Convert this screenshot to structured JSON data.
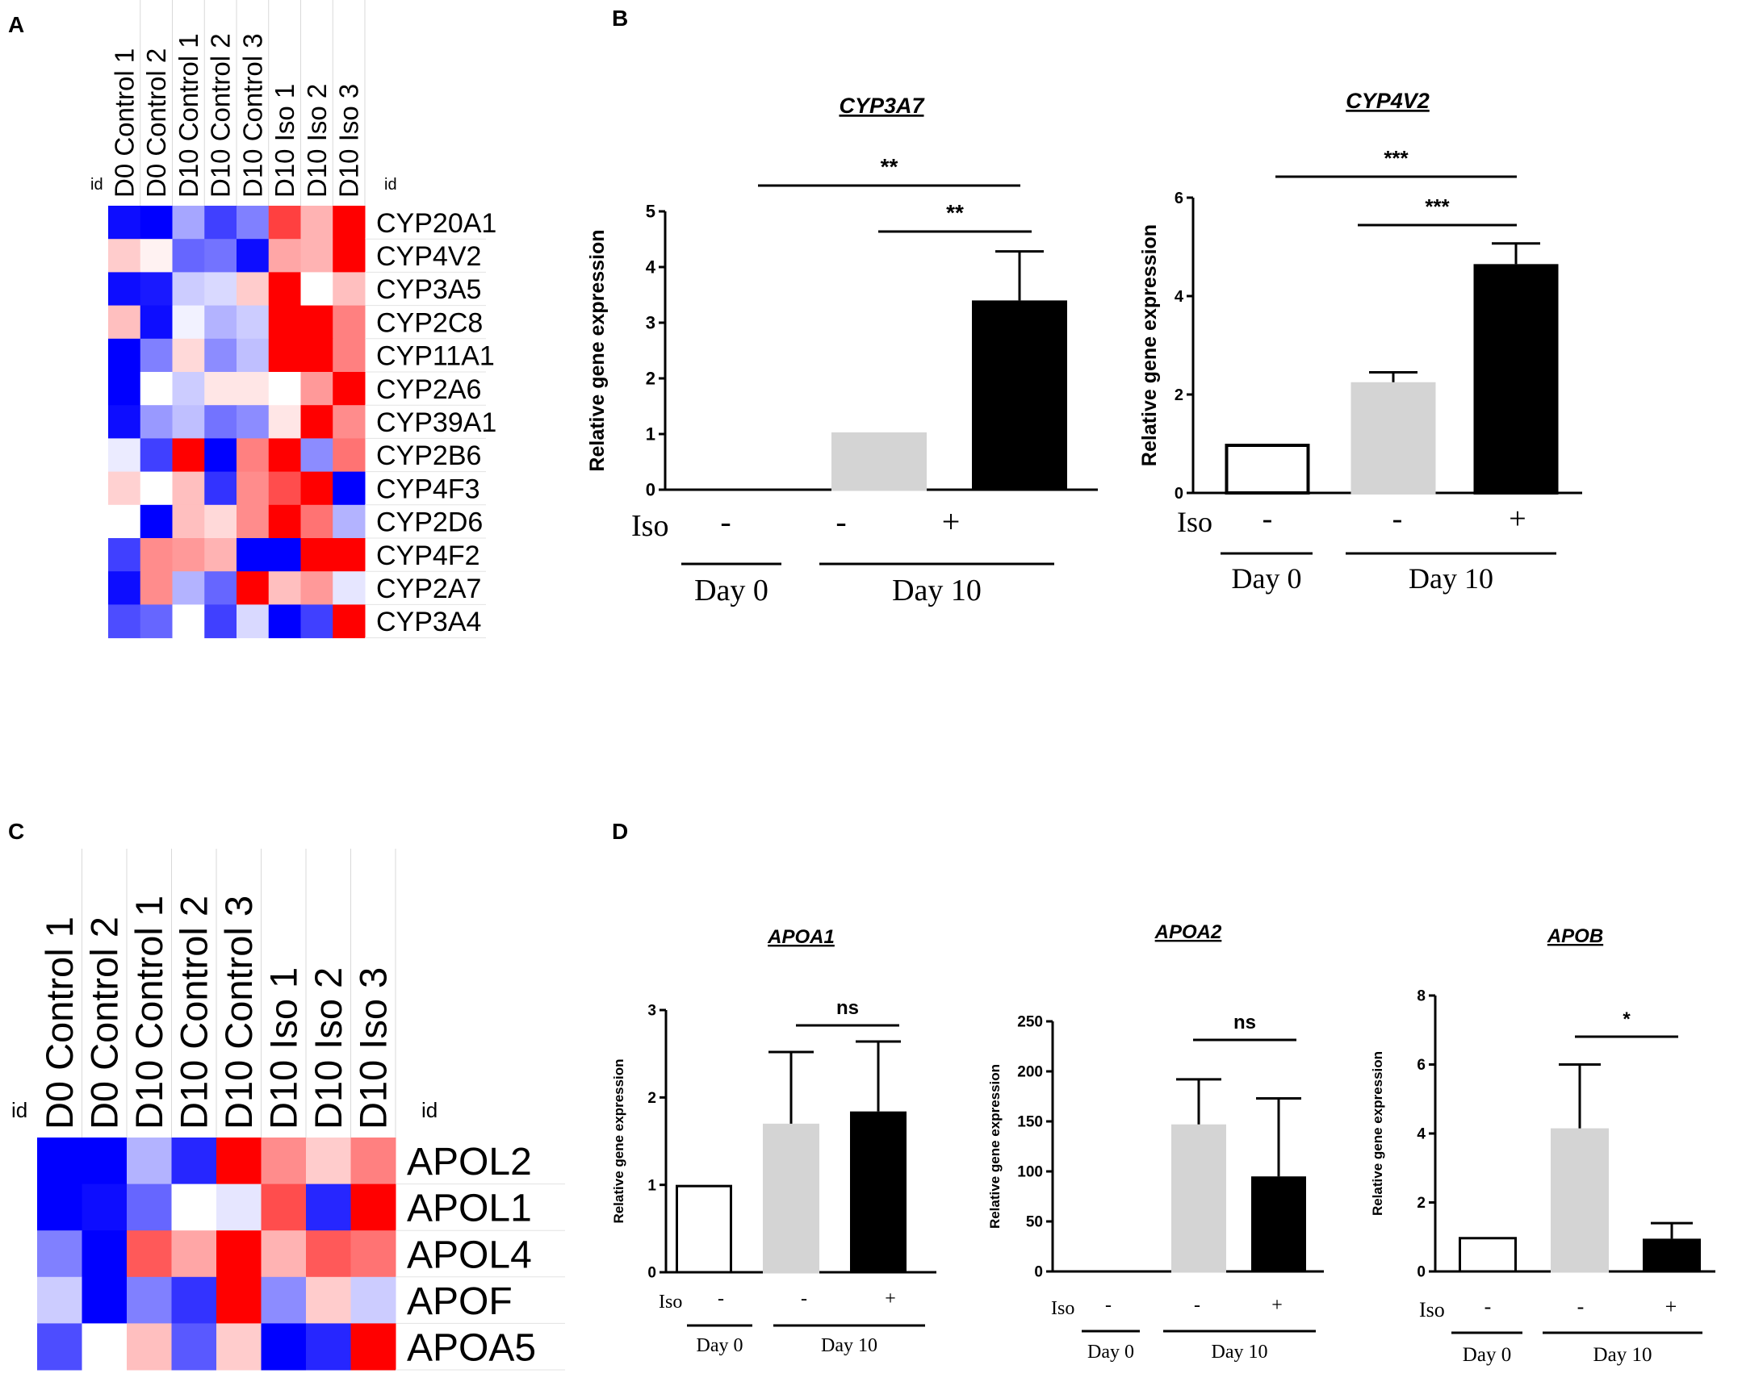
{
  "panels": {
    "a": "A",
    "b": "B",
    "c": "C",
    "d": "D"
  },
  "heatmap_a": {
    "id_label": "id",
    "columns": [
      "D0 Control 1",
      "D0 Control 2",
      "D10 Control 1",
      "D10 Control 2",
      "D10 Control 3",
      "D10 Iso 1",
      "D10 Iso 2",
      "D10 Iso 3"
    ],
    "rows": [
      "CYP20A1",
      "CYP4V2",
      "CYP3A5",
      "CYP2C8",
      "CYP11A1",
      "CYP2A6",
      "CYP39A1",
      "CYP2B6",
      "CYP4F3",
      "CYP2D6",
      "CYP4F2",
      "CYP2A7",
      "CYP3A4"
    ]
  },
  "heatmap_c": {
    "id_label": "id",
    "columns": [
      "D0 Control 1",
      "D0 Control 2",
      "D10 Control 1",
      "D10 Control 2",
      "D10 Control 3",
      "D10 Iso 1",
      "D10 Iso 2",
      "D10 Iso 3"
    ],
    "rows": [
      "APOL2",
      "APOL1",
      "APOL4",
      "APOF",
      "APOA5"
    ]
  },
  "chart_data": [
    {
      "panel": "A",
      "type": "heatmap",
      "title": "",
      "columns": [
        "D0 Control 1",
        "D0 Control 2",
        "D10 Control 1",
        "D10 Control 2",
        "D10 Control 3",
        "D10 Iso 1",
        "D10 Iso 2",
        "D10 Iso 3"
      ],
      "rows": [
        "CYP20A1",
        "CYP4V2",
        "CYP3A5",
        "CYP2C8",
        "CYP11A1",
        "CYP2A6",
        "CYP39A1",
        "CYP2B6",
        "CYP4F3",
        "CYP2D6",
        "CYP4F2",
        "CYP2A7",
        "CYP3A4"
      ],
      "scale": [
        -1,
        1
      ],
      "values": [
        [
          -0.95,
          -1.0,
          -0.35,
          -0.75,
          -0.5,
          0.75,
          0.3,
          1.0
        ],
        [
          0.2,
          0.05,
          -0.6,
          -0.55,
          -0.95,
          0.35,
          0.3,
          1.0
        ],
        [
          -0.95,
          -0.9,
          -0.2,
          -0.15,
          0.2,
          1.0,
          0.0,
          0.25
        ],
        [
          0.25,
          -0.95,
          -0.05,
          -0.3,
          -0.2,
          1.0,
          1.0,
          0.5
        ],
        [
          -1.0,
          -0.5,
          0.15,
          -0.45,
          -0.25,
          1.0,
          1.0,
          0.5
        ],
        [
          -1.0,
          0.0,
          -0.2,
          0.1,
          0.1,
          0.0,
          0.4,
          1.0
        ],
        [
          -0.95,
          -0.4,
          -0.25,
          -0.55,
          -0.45,
          0.1,
          1.0,
          0.45
        ],
        [
          -0.08,
          -0.75,
          1.0,
          -1.0,
          0.5,
          1.0,
          -0.45,
          0.55
        ],
        [
          0.18,
          0.0,
          0.25,
          -0.8,
          0.45,
          0.7,
          1.0,
          -1.0
        ],
        [
          0.0,
          -1.0,
          0.25,
          0.15,
          0.45,
          1.0,
          0.55,
          -0.3
        ],
        [
          -0.75,
          0.45,
          0.4,
          0.3,
          -1.0,
          -1.0,
          1.0,
          1.0
        ],
        [
          -0.95,
          0.45,
          -0.3,
          -0.6,
          1.0,
          0.25,
          0.4,
          -0.1
        ],
        [
          -0.7,
          -0.6,
          0.0,
          -0.75,
          -0.15,
          -1.0,
          -0.75,
          1.0
        ]
      ]
    },
    {
      "panel": "B",
      "type": "bar",
      "title": "CYP3A7",
      "ylabel": "Relative gene expression",
      "xlabel": "",
      "ylim": [
        0,
        5
      ],
      "yticks": [
        "0",
        "1",
        "2",
        "3",
        "4",
        "5"
      ],
      "categories": [
        "Day 0 Iso -",
        "Day 10 Iso -",
        "Day 10 Iso +"
      ],
      "iso_labels": [
        "-",
        "-",
        "+"
      ],
      "iso_label": "Iso",
      "groups": [
        "Day 0",
        "Day 10"
      ],
      "values": [
        0,
        1.03,
        3.4
      ],
      "errors": [
        0,
        0,
        0.88
      ],
      "bar_colors": [
        "#ffffff",
        "#d4d4d4",
        "#000000"
      ],
      "significance": [
        {
          "from": 0,
          "to": 2,
          "label": "**"
        },
        {
          "from": 1,
          "to": 2,
          "label": "**"
        }
      ]
    },
    {
      "panel": "B",
      "type": "bar",
      "title": "CYP4V2",
      "ylabel": "Relative gene expression",
      "xlabel": "",
      "ylim": [
        0,
        6
      ],
      "yticks": [
        "0",
        "2",
        "4",
        "6"
      ],
      "categories": [
        "Day 0 Iso -",
        "Day 10 Iso -",
        "Day 10 Iso +"
      ],
      "iso_labels": [
        "-",
        "-",
        "+"
      ],
      "iso_label": "Iso",
      "groups": [
        "Day 0",
        "Day 10"
      ],
      "values": [
        1.0,
        2.25,
        4.65
      ],
      "errors": [
        0,
        0.2,
        0.42
      ],
      "bar_colors": [
        "#ffffff",
        "#d4d4d4",
        "#000000"
      ],
      "significance": [
        {
          "from": 0,
          "to": 2,
          "label": "***"
        },
        {
          "from": 1,
          "to": 2,
          "label": "***"
        }
      ]
    },
    {
      "panel": "C",
      "type": "heatmap",
      "title": "",
      "columns": [
        "D0 Control 1",
        "D0 Control 2",
        "D10 Control 1",
        "D10 Control 2",
        "D10 Control 3",
        "D10 Iso 1",
        "D10 Iso 2",
        "D10 Iso 3"
      ],
      "rows": [
        "APOL2",
        "APOL1",
        "APOL4",
        "APOF",
        "APOA5"
      ],
      "scale": [
        -1,
        1
      ],
      "values": [
        [
          -1.0,
          -1.0,
          -0.3,
          -0.85,
          1.0,
          0.45,
          0.2,
          0.5
        ],
        [
          -1.0,
          -0.95,
          -0.6,
          0.0,
          -0.1,
          0.7,
          -0.85,
          1.0
        ],
        [
          -0.5,
          -1.0,
          0.65,
          0.35,
          1.0,
          0.3,
          0.65,
          0.55
        ],
        [
          -0.2,
          -1.0,
          -0.5,
          -0.8,
          1.0,
          -0.45,
          0.2,
          -0.2
        ],
        [
          -0.7,
          0.0,
          0.25,
          -0.65,
          0.2,
          -1.0,
          -0.85,
          1.0
        ]
      ]
    },
    {
      "panel": "D",
      "type": "bar",
      "title": "APOA1",
      "ylabel": "Relative gene expression",
      "xlabel": "",
      "ylim": [
        0,
        3
      ],
      "yticks": [
        "0",
        "1",
        "2",
        "3"
      ],
      "categories": [
        "Day 0 Iso -",
        "Day 10 Iso -",
        "Day 10 Iso +"
      ],
      "iso_labels": [
        "-",
        "-",
        "+"
      ],
      "iso_label": "Iso",
      "groups": [
        "Day 0",
        "Day 10"
      ],
      "values": [
        1.0,
        1.7,
        1.84
      ],
      "errors": [
        0,
        0.82,
        0.8
      ],
      "bar_colors": [
        "#ffffff",
        "#d4d4d4",
        "#000000"
      ],
      "significance": [
        {
          "from": 1,
          "to": 2,
          "label": "ns"
        }
      ]
    },
    {
      "panel": "D",
      "type": "bar",
      "title": "APOA2",
      "ylabel": "Relative gene expression",
      "xlabel": "",
      "ylim": [
        0,
        250
      ],
      "yticks": [
        "0",
        "50",
        "100",
        "150",
        "200",
        "250"
      ],
      "categories": [
        "Day 0 Iso -",
        "Day 10 Iso -",
        "Day 10 Iso +"
      ],
      "iso_labels": [
        "-",
        "-",
        "+"
      ],
      "iso_label": "Iso",
      "groups": [
        "Day 0",
        "Day 10"
      ],
      "values": [
        0,
        147,
        95
      ],
      "errors": [
        0,
        45,
        78
      ],
      "bar_colors": [
        "#ffffff",
        "#d4d4d4",
        "#000000"
      ],
      "significance": [
        {
          "from": 1,
          "to": 2,
          "label": "ns"
        }
      ]
    },
    {
      "panel": "D",
      "type": "bar",
      "title": "APOB",
      "ylabel": "Relative gene expression",
      "xlabel": "",
      "ylim": [
        0,
        8
      ],
      "yticks": [
        "0",
        "2",
        "4",
        "6",
        "8"
      ],
      "categories": [
        "Day 0 Iso -",
        "Day 10 Iso -",
        "Day 10 Iso +"
      ],
      "iso_labels": [
        "-",
        "-",
        "+"
      ],
      "iso_label": "Iso",
      "groups": [
        "Day 0",
        "Day 10"
      ],
      "values": [
        1.0,
        4.15,
        0.95
      ],
      "errors": [
        0,
        1.85,
        0.45
      ],
      "bar_colors": [
        "#ffffff",
        "#d4d4d4",
        "#000000"
      ],
      "significance": [
        {
          "from": 1,
          "to": 2,
          "label": "*"
        }
      ]
    }
  ]
}
